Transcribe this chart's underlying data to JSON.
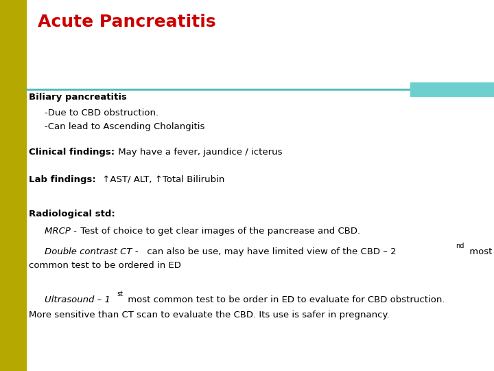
{
  "title": "Acute Pancreatitis",
  "title_color": "#cc0000",
  "title_fontsize": 18,
  "bg_color": "#ffffff",
  "left_bar_color": "#b5a800",
  "teal_line_color": "#4db8b8",
  "teal_box_color": "#6ecfcf",
  "fig_width": 7.2,
  "fig_height": 5.4,
  "dpi": 100
}
